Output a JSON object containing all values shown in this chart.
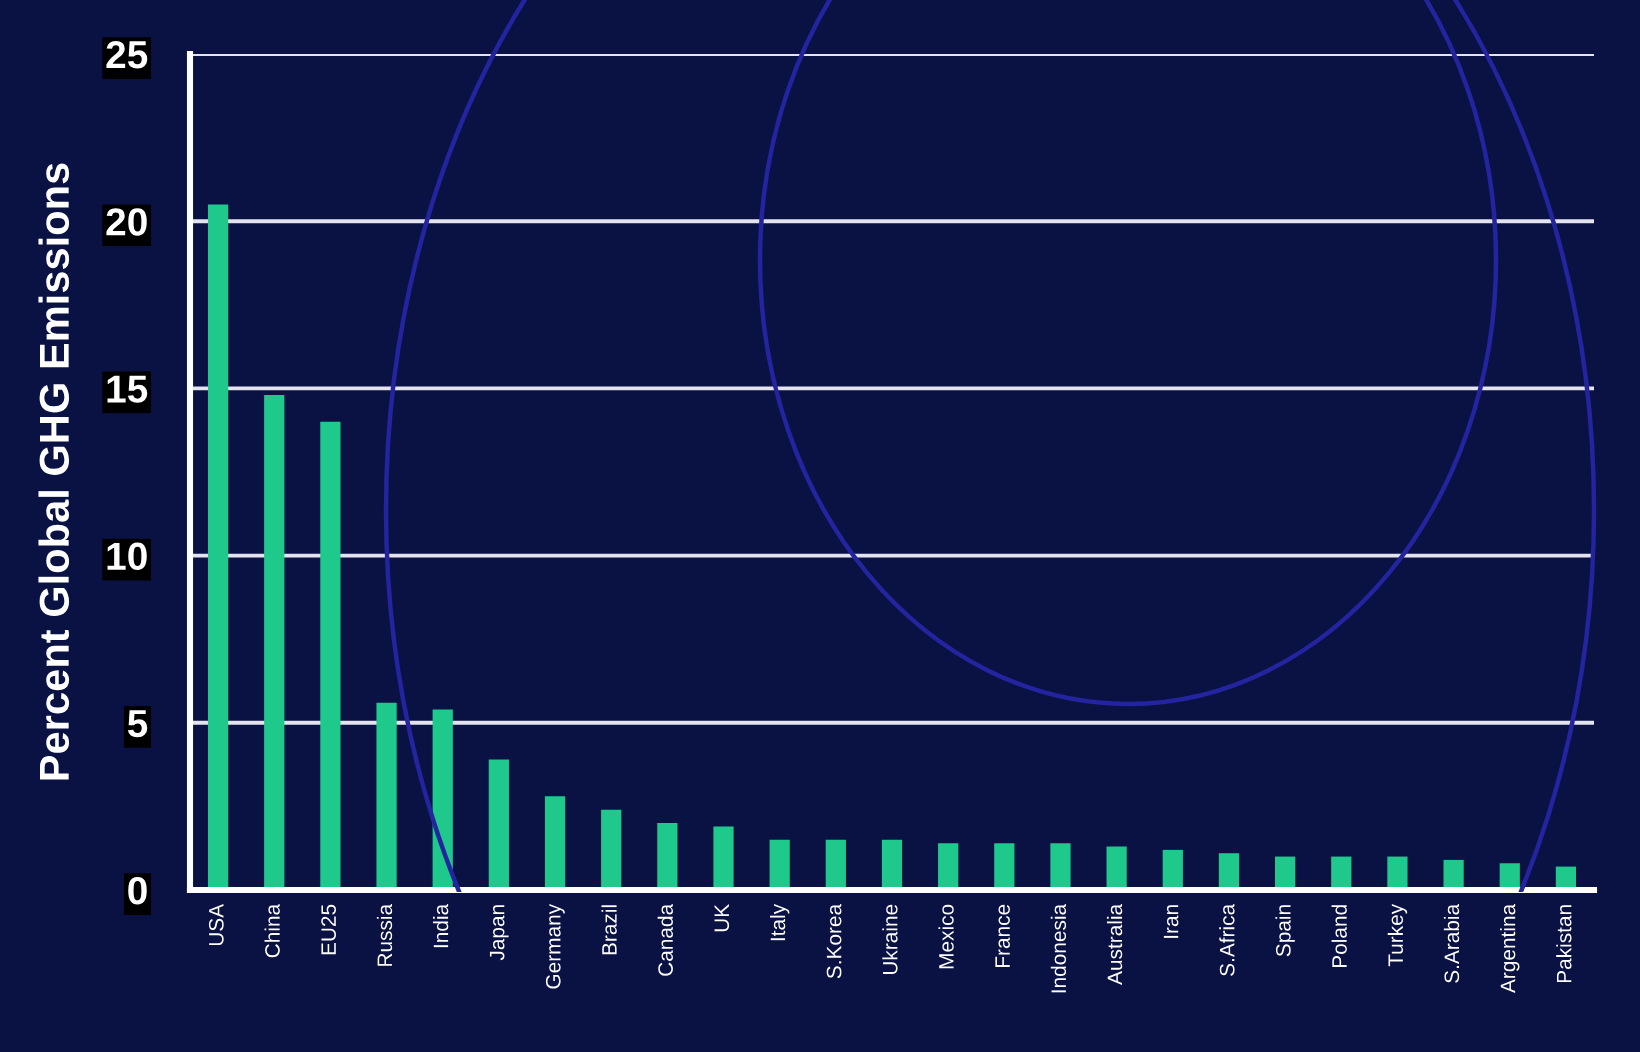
{
  "chart_data": {
    "type": "bar",
    "ylabel": "Percent Global GHG Emissions",
    "categories": [
      "USA",
      "China",
      "EU25",
      "Russia",
      "India",
      "Japan",
      "Germany",
      "Brazil",
      "Canada",
      "UK",
      "Italy",
      "S.Korea",
      "Ukraine",
      "Mexico",
      "France",
      "Indonesia",
      "Australia",
      "Iran",
      "S.Africa",
      "Spain",
      "Poland",
      "Turkey",
      "S.Arabia",
      "Argentina",
      "Pakistan"
    ],
    "values": [
      20.5,
      14.8,
      14.0,
      5.6,
      5.4,
      3.9,
      2.8,
      2.4,
      2.0,
      1.9,
      1.5,
      1.5,
      1.5,
      1.4,
      1.4,
      1.4,
      1.3,
      1.2,
      1.1,
      1.0,
      1.0,
      1.0,
      0.9,
      0.8,
      0.7
    ],
    "color": "#1fc98b",
    "ylim": [
      0,
      25
    ],
    "yticks": [
      0,
      5,
      10,
      15,
      20,
      25
    ],
    "grid": "y"
  }
}
